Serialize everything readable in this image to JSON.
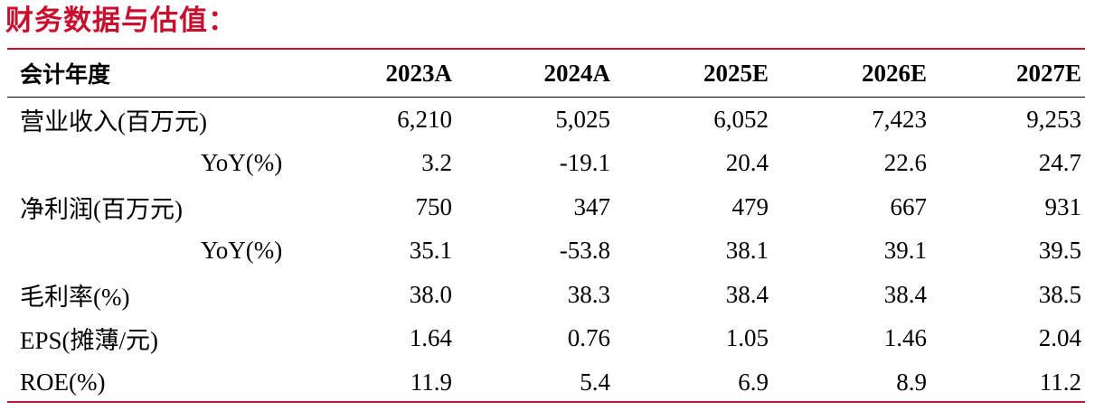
{
  "title": "财务数据与估值：",
  "table": {
    "header": [
      "会计年度",
      "2023A",
      "2024A",
      "2025E",
      "2026E",
      "2027E"
    ],
    "rows": [
      [
        "营业收入(百万元)",
        "6,210",
        "5,025",
        "6,052",
        "7,423",
        "9,253"
      ],
      [
        "YoY(%)",
        "3.2",
        "-19.1",
        "20.4",
        "22.6",
        "24.7"
      ],
      [
        "净利润(百万元)",
        "750",
        "347",
        "479",
        "667",
        "931"
      ],
      [
        "YoY(%)",
        "35.1",
        "-53.8",
        "38.1",
        "39.1",
        "39.5"
      ],
      [
        "毛利率(%)",
        "38.0",
        "38.3",
        "38.4",
        "38.4",
        "38.5"
      ],
      [
        "EPS(摊薄/元)",
        "1.64",
        "0.76",
        "1.05",
        "1.46",
        "2.04"
      ],
      [
        "ROE(%)",
        "11.9",
        "5.4",
        "6.9",
        "8.9",
        "11.2"
      ]
    ]
  }
}
